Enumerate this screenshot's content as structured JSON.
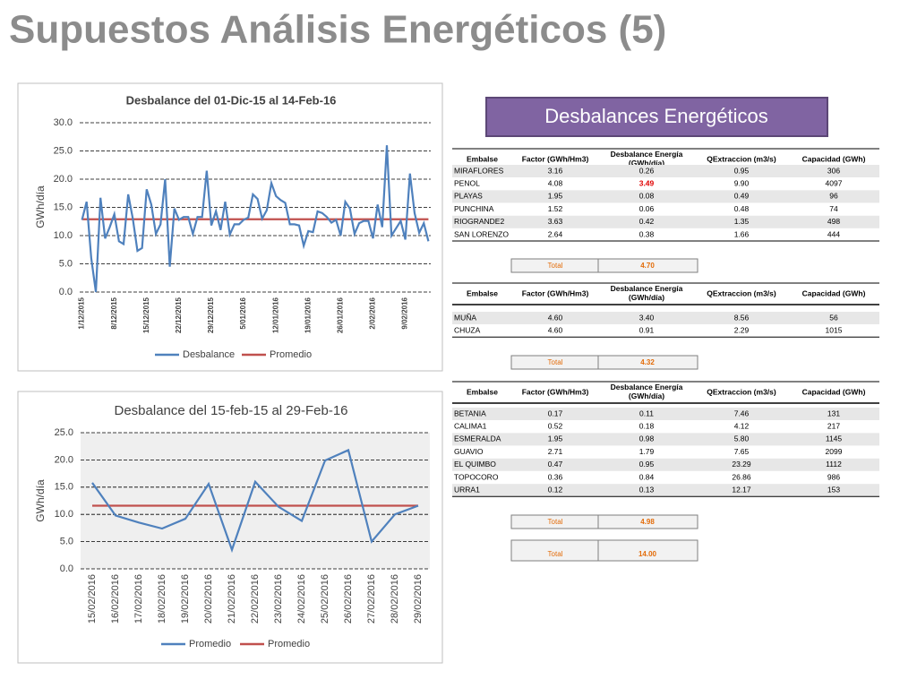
{
  "title": "Supuestos Análisis Energéticos (5)",
  "chart_data": [
    {
      "type": "line",
      "title": "Desbalance del 01-Dic-15 al 14-Feb-16",
      "y_label": "GWh/día",
      "categories": [
        "1/12/2015",
        null,
        null,
        null,
        null,
        null,
        null,
        "8/12/2015",
        null,
        null,
        null,
        null,
        null,
        null,
        "15/12/2015",
        null,
        null,
        null,
        null,
        null,
        null,
        "22/12/2015",
        null,
        null,
        null,
        null,
        null,
        null,
        "29/12/2015",
        null,
        null,
        null,
        null,
        null,
        null,
        "5/01/2016",
        null,
        null,
        null,
        null,
        null,
        null,
        "12/01/2016",
        null,
        null,
        null,
        null,
        null,
        null,
        "19/01/2016",
        null,
        null,
        null,
        null,
        null,
        null,
        "26/01/2016",
        null,
        null,
        null,
        null,
        null,
        null,
        "2/02/2016",
        null,
        null,
        null,
        null,
        null,
        null,
        "9/02/2016",
        null,
        null,
        null,
        null,
        null
      ],
      "series": [
        {
          "name": "Desbalance",
          "color": "#4f81bd",
          "values": [
            12.8,
            16,
            6,
            0,
            16.7,
            9.5,
            11.5,
            13.8,
            9,
            8.5,
            17.3,
            13,
            7.3,
            7.8,
            18.2,
            15.5,
            10.3,
            12,
            20,
            4.5,
            14.8,
            12.8,
            13.3,
            13.3,
            10.3,
            13.3,
            13.3,
            21.5,
            11.8,
            14.3,
            11,
            16,
            10.2,
            12,
            12,
            12.8,
            13.2,
            17.3,
            16.5,
            13,
            14.5,
            19.3,
            17,
            16.3,
            15.8,
            12,
            12,
            11.8,
            8.2,
            10.8,
            10.6,
            14.3,
            14,
            13.3,
            12.3,
            12.8,
            10,
            16,
            14.8,
            10.3,
            12.2,
            12.6,
            12.6,
            9.5,
            15.5,
            11.5,
            26,
            10,
            11.3,
            12.6,
            9.3,
            21,
            14,
            10.5,
            12.2,
            9
          ]
        },
        {
          "name": "Promedio",
          "color": "#c0504d",
          "values": [
            12.9,
            12.9,
            12.9,
            12.9,
            12.9,
            12.9,
            12.9,
            12.9,
            12.9,
            12.9,
            12.9,
            12.9,
            12.9,
            12.9,
            12.9,
            12.9,
            12.9,
            12.9,
            12.9,
            12.9,
            12.9,
            12.9,
            12.9,
            12.9,
            12.9,
            12.9,
            12.9,
            12.9,
            12.9,
            12.9,
            12.9,
            12.9,
            12.9,
            12.9,
            12.9,
            12.9,
            12.9,
            12.9,
            12.9,
            12.9,
            12.9,
            12.9,
            12.9,
            12.9,
            12.9,
            12.9,
            12.9,
            12.9,
            12.9,
            12.9,
            12.9,
            12.9,
            12.9,
            12.9,
            12.9,
            12.9,
            12.9,
            12.9,
            12.9,
            12.9,
            12.9,
            12.9,
            12.9,
            12.9,
            12.9,
            12.9,
            12.9,
            12.9,
            12.9,
            12.9,
            12.9,
            12.9,
            12.9,
            12.9,
            12.9,
            12.9
          ]
        }
      ],
      "ylim": [
        0,
        30
      ],
      "yticks": [
        {
          "value": 0,
          "label": "0.0"
        },
        {
          "value": 5,
          "label": "5.0"
        },
        {
          "value": 10,
          "label": "10.0"
        },
        {
          "value": 15,
          "label": "15.0"
        },
        {
          "value": 20,
          "label": "20.0"
        },
        {
          "value": 25,
          "label": "25.0"
        },
        {
          "value": 30,
          "label": "30.0"
        }
      ],
      "grid": true
    },
    {
      "type": "line",
      "title": "Desbalance del 15-feb-15 al 29-Feb-16",
      "y_label": "GWh/día",
      "categories": [
        "15/02/2016",
        "16/02/2016",
        "17/02/2016",
        "18/02/2016",
        "19/02/2016",
        "20/02/2016",
        "21/02/2016",
        "22/02/2016",
        "23/02/2016",
        "24/02/2016",
        "25/02/2016",
        "26/02/2016",
        "27/02/2016",
        "28/02/2016",
        "29/02/2016"
      ],
      "series": [
        {
          "name": "Promedio",
          "color": "#4f81bd",
          "values": [
            15.8,
            9.8,
            8.5,
            7.4,
            9.2,
            15.6,
            3.5,
            16,
            11.4,
            8.8,
            19.9,
            21.8,
            5,
            10,
            11.6
          ]
        },
        {
          "name": "Promedio",
          "color": "#c0504d",
          "values": [
            11.6,
            11.6,
            11.6,
            11.6,
            11.6,
            11.6,
            11.6,
            11.6,
            11.6,
            11.6,
            11.6,
            11.6,
            11.6,
            11.6,
            11.6
          ]
        }
      ],
      "ylim": [
        0,
        25
      ],
      "yticks": [
        {
          "value": 0,
          "label": "0.0"
        },
        {
          "value": 5,
          "label": "5.0"
        },
        {
          "value": 10,
          "label": "10.0"
        },
        {
          "value": 15,
          "label": "15.0"
        },
        {
          "value": 20,
          "label": "20.0"
        },
        {
          "value": 25,
          "label": "25.0"
        }
      ],
      "grid": true
    }
  ],
  "banner": "Desbalances Energéticos",
  "columns": [
    "Embalse",
    "Factor (GWh/Hm3)",
    "Desbalance Energía (GWh/día)",
    "QExtraccion (m3/s)",
    "Capacidad (GWh)"
  ],
  "total_label": "Total",
  "tables": [
    {
      "rows": [
        [
          "MIRAFLORES",
          "3.16",
          "0.26",
          "0.95",
          "306"
        ],
        [
          "PENOL",
          "4.08",
          "3.49",
          "9.90",
          "4097"
        ],
        [
          "PLAYAS",
          "1.95",
          "0.08",
          "0.49",
          "96"
        ],
        [
          "PUNCHINA",
          "1.52",
          "0.06",
          "0.48",
          "74"
        ],
        [
          "RIOGRANDE2",
          "3.63",
          "0.42",
          "1.35",
          "498"
        ],
        [
          "SAN LORENZO",
          "2.64",
          "0.38",
          "1.66",
          "444"
        ]
      ],
      "total": "4.70"
    },
    {
      "rows": [
        [
          "MUÑA",
          "4.60",
          "3.40",
          "8.56",
          "56"
        ],
        [
          "CHUZA",
          "4.60",
          "0.91",
          "2.29",
          "1015"
        ]
      ],
      "total": "4.32"
    },
    {
      "rows": [
        [
          "BETANIA",
          "0.17",
          "0.11",
          "7.46",
          "131"
        ],
        [
          "CALIMA1",
          "0.52",
          "0.18",
          "4.12",
          "217"
        ],
        [
          "ESMERALDA",
          "1.95",
          "0.98",
          "5.80",
          "1145"
        ],
        [
          "GUAVIO",
          "2.71",
          "1.79",
          "7.65",
          "2099"
        ],
        [
          "EL QUIMBO",
          "0.47",
          "0.95",
          "23.29",
          "1112"
        ],
        [
          "TOPOCORO",
          "0.36",
          "0.84",
          "26.86",
          "986"
        ],
        [
          "URRA1",
          "0.12",
          "0.13",
          "12.17",
          "153"
        ]
      ],
      "total": "4.98"
    }
  ],
  "grand_total": "14.00"
}
